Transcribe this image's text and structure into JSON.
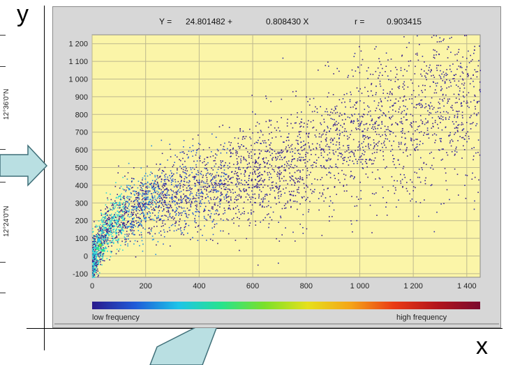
{
  "outer": {
    "y_letter": "y",
    "x_letter": "x",
    "lat_top": "12°36'0\"N",
    "lat_bottom": "12°24'0\"N"
  },
  "equation": {
    "lhs": "Y =",
    "intercept": "24.801482 +",
    "slope": "0.808430 X",
    "r_label": "r =",
    "r_value": "0.903415"
  },
  "legend": {
    "low": "low frequency",
    "high": "high frequency",
    "colors": [
      "#2a1a8c",
      "#1f5bd8",
      "#1ec4e8",
      "#27e38d",
      "#7be02a",
      "#e6e01c",
      "#f5a418",
      "#ea3a15",
      "#b3151c",
      "#7a0a2e"
    ]
  },
  "colors": {
    "plot_bg": "#fbf5a8",
    "grid": "#bdb88e",
    "window_bg": "#d7d7d7",
    "arrow_fill": "#b9dfe2",
    "arrow_stroke": "#3f6f78"
  },
  "chart_data": {
    "type": "heatmap",
    "title": "",
    "xlabel": "",
    "ylabel": "",
    "xlim": [
      0,
      1450
    ],
    "ylim": [
      -120,
      1250
    ],
    "xticks": [
      0,
      200,
      400,
      600,
      800,
      1000,
      1200,
      1400
    ],
    "xtick_labels": [
      "0",
      "200",
      "400",
      "600",
      "800",
      "1 000",
      "1 200",
      "1 400"
    ],
    "yticks": [
      -100,
      0,
      100,
      200,
      300,
      400,
      500,
      600,
      700,
      800,
      900,
      1000,
      1100,
      1200
    ],
    "ytick_labels": [
      "-100",
      "0",
      "100",
      "200",
      "300",
      "400",
      "500",
      "600",
      "700",
      "800",
      "900",
      "1 000",
      "1 100",
      "1 200"
    ],
    "grid": true,
    "regression": {
      "intercept": 24.801482,
      "slope": 0.80843,
      "r": 0.903415
    },
    "density_center": {
      "x": [
        20,
        50,
        100,
        200,
        300,
        400,
        500,
        600,
        700,
        800,
        900,
        1000,
        1100,
        1200,
        1300,
        1400
      ],
      "y": [
        40,
        150,
        220,
        290,
        340,
        380,
        420,
        450,
        500,
        560,
        630,
        690,
        760,
        800,
        850,
        900
      ]
    },
    "legend": [
      "low frequency",
      "high frequency"
    ]
  }
}
